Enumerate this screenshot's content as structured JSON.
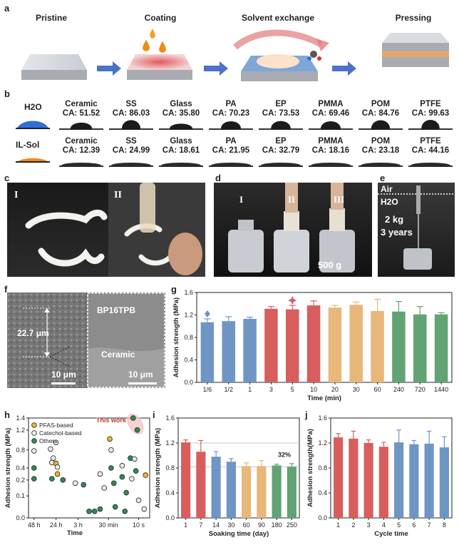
{
  "panel_labels": {
    "a": "a",
    "b": "b",
    "c": "c",
    "d": "d",
    "e": "e",
    "f": "f",
    "g": "g",
    "h": "h",
    "i": "i",
    "j": "j"
  },
  "panel_a": {
    "steps": [
      "Pristine",
      "Coating",
      "Solvent exchange",
      "Pressing"
    ]
  },
  "panel_b": {
    "row1_label": "H2O",
    "row2_label": "IL-Sol",
    "h2o": [
      {
        "m": "Ceramic",
        "ca": "CA: 51.52"
      },
      {
        "m": "SS",
        "ca": "CA: 86.03"
      },
      {
        "m": "Glass",
        "ca": "CA: 35.80"
      },
      {
        "m": "PA",
        "ca": "CA: 70.23"
      },
      {
        "m": "EP",
        "ca": "CA: 73.53"
      },
      {
        "m": "PMMA",
        "ca": "CA: 69.46"
      },
      {
        "m": "POM",
        "ca": "CA: 84.76"
      },
      {
        "m": "PTFE",
        "ca": "CA: 99.63"
      }
    ],
    "ilsol": [
      {
        "m": "Ceramic",
        "ca": "CA: 12.39"
      },
      {
        "m": "SS",
        "ca": "CA: 24.99"
      },
      {
        "m": "Glass",
        "ca": "CA: 18.61"
      },
      {
        "m": "PA",
        "ca": "CA: 21.95"
      },
      {
        "m": "EP",
        "ca": "CA: 32.79"
      },
      {
        "m": "PMMA",
        "ca": "CA: 18.16"
      },
      {
        "m": "POM",
        "ca": "CA: 23.18"
      },
      {
        "m": "PTFE",
        "ca": "CA: 44.16"
      }
    ]
  },
  "panel_c": {
    "left": "I",
    "right": "II"
  },
  "panel_d": {
    "labels": [
      "I",
      "II",
      "III"
    ],
    "weight": "500 g"
  },
  "panel_e": {
    "air": "Air",
    "water": "H2O",
    "load": "2 kg",
    "duration": "3 years"
  },
  "panel_f": {
    "thickness": "22.7 μm",
    "scale_left": "10 μm",
    "scale_right": "10 μm",
    "layer": "BP16TPB",
    "substrate": "Ceramic"
  },
  "chart_data": [
    {
      "panel": "g",
      "type": "bar",
      "ylabel": "Adhesion strength (MPa)",
      "xlabel": "Time (min)",
      "ylim": [
        0,
        1.6
      ],
      "yticks": [
        "0.0",
        "0.4",
        "0.8",
        "1.2",
        "1.6"
      ],
      "categories": [
        "1/6",
        "1/2",
        "1",
        "3",
        "5",
        "10",
        "20",
        "30",
        "60",
        "240",
        "720",
        "1440"
      ],
      "values": [
        1.07,
        1.09,
        1.13,
        1.31,
        1.3,
        1.37,
        1.33,
        1.38,
        1.27,
        1.26,
        1.21,
        1.21
      ],
      "errors": [
        0.06,
        0.08,
        0.03,
        0.04,
        0.07,
        0.08,
        0.04,
        0.05,
        0.21,
        0.18,
        0.14,
        0.03
      ],
      "colors": [
        "#6f95c4",
        "#6f95c4",
        "#6f95c4",
        "#d85e5e",
        "#d85e5e",
        "#d85e5e",
        "#e8b77a",
        "#e8b77a",
        "#e8b77a",
        "#62a373",
        "#62a373",
        "#62a373"
      ]
    },
    {
      "panel": "h",
      "type": "scatter",
      "ylabel": "Adhesion strength (MPa)",
      "xlabel": "Time",
      "yticks": [
        "0.0",
        "0.1",
        "0.2",
        "0.4",
        "0.8",
        "1.2",
        "1.4"
      ],
      "xticks": [
        "48 h",
        "24 h",
        "3 h",
        "30 min",
        "10 s"
      ],
      "legend": [
        "PFAS-based",
        "Catechol-based",
        "Others"
      ],
      "annotation": "This work",
      "points": [
        {
          "t": "catechol",
          "x": 0.2,
          "y": 0.78
        },
        {
          "t": "others",
          "x": 0.2,
          "y": 0.4
        },
        {
          "t": "others",
          "x": 0.2,
          "y": 0.22
        },
        {
          "t": "catechol",
          "x": 1.0,
          "y": 0.95
        },
        {
          "t": "catechol",
          "x": 0.8,
          "y": 0.82
        },
        {
          "t": "catechol",
          "x": 0.9,
          "y": 0.62
        },
        {
          "t": "catechol",
          "x": 0.85,
          "y": 0.52
        },
        {
          "t": "pfas",
          "x": 1.0,
          "y": 0.5
        },
        {
          "t": "catechol",
          "x": 1.05,
          "y": 0.42
        },
        {
          "t": "pfas",
          "x": 1.05,
          "y": 0.3
        },
        {
          "t": "others",
          "x": 0.85,
          "y": 0.22
        },
        {
          "t": "others",
          "x": 1.25,
          "y": 0.2
        },
        {
          "t": "catechol",
          "x": 1.7,
          "y": 0.18
        },
        {
          "t": "others",
          "x": 2.0,
          "y": 0.17
        },
        {
          "t": "others",
          "x": 2.2,
          "y": 0.03
        },
        {
          "t": "others",
          "x": 2.4,
          "y": 0.03
        },
        {
          "t": "others",
          "x": 2.6,
          "y": 0.04
        },
        {
          "t": "catechol",
          "x": 2.6,
          "y": 0.3
        },
        {
          "t": "catechol",
          "x": 2.75,
          "y": 0.15
        },
        {
          "t": "pfas",
          "x": 2.95,
          "y": 1.02
        },
        {
          "t": "catechol",
          "x": 3.0,
          "y": 0.8
        },
        {
          "t": "others",
          "x": 3.0,
          "y": 0.4
        },
        {
          "t": "others",
          "x": 3.1,
          "y": 0.18
        },
        {
          "t": "others",
          "x": 3.15,
          "y": 0.05
        },
        {
          "t": "others",
          "x": 3.4,
          "y": 0.25
        },
        {
          "t": "catechol",
          "x": 3.4,
          "y": 0.45
        },
        {
          "t": "others",
          "x": 3.55,
          "y": 0.12
        },
        {
          "t": "others",
          "x": 3.5,
          "y": 0.03
        },
        {
          "t": "others",
          "x": 3.7,
          "y": 0.62
        },
        {
          "t": "catechol",
          "x": 3.75,
          "y": 0.22
        },
        {
          "t": "others",
          "x": 3.8,
          "y": 1.4
        },
        {
          "t": "others",
          "x": 3.95,
          "y": 1.2
        },
        {
          "t": "catechol",
          "x": 3.85,
          "y": 0.6
        },
        {
          "t": "others",
          "x": 3.9,
          "y": 0.35
        },
        {
          "t": "catechol",
          "x": 4.0,
          "y": 0.08
        },
        {
          "t": "pfas",
          "x": 4.25,
          "y": 0.28
        },
        {
          "t": "catechol",
          "x": 4.2,
          "y": 0.04
        }
      ]
    },
    {
      "panel": "i",
      "type": "bar",
      "ylabel": "Adhesion strength (MPa)",
      "xlabel": "Soaking time (day)",
      "ylim": [
        0,
        1.6
      ],
      "yticks": [
        "0.0",
        "0.4",
        "0.8",
        "1.2",
        "1.6"
      ],
      "categories": [
        "1",
        "7",
        "14",
        "30",
        "60",
        "90",
        "180",
        "250"
      ],
      "values": [
        1.21,
        1.06,
        0.98,
        0.9,
        0.83,
        0.83,
        0.84,
        0.82
      ],
      "errors": [
        0.04,
        0.18,
        0.08,
        0.05,
        0.05,
        0.09,
        0.02,
        0.05
      ],
      "colors": [
        "#d85e5e",
        "#d85e5e",
        "#6f95c4",
        "#6f95c4",
        "#e8b77a",
        "#e8b77a",
        "#62a373",
        "#62a373"
      ],
      "annotation": "32%",
      "ref_lines": [
        1.2,
        0.82
      ]
    },
    {
      "panel": "j",
      "type": "bar",
      "ylabel": "Adhesion strength(MPa)",
      "xlabel": "Cycle time",
      "ylim": [
        0,
        1.6
      ],
      "yticks": [
        "0.0",
        "0.4",
        "0.8",
        "1.2",
        "1.6"
      ],
      "categories": [
        "1",
        "2",
        "3",
        "4",
        "5",
        "6",
        "7",
        "8"
      ],
      "values": [
        1.29,
        1.27,
        1.2,
        1.14,
        1.21,
        1.18,
        1.19,
        1.13
      ],
      "errors": [
        0.06,
        0.12,
        0.05,
        0.07,
        0.2,
        0.06,
        0.2,
        0.17
      ],
      "colors": [
        "#d85e5e",
        "#d85e5e",
        "#d85e5e",
        "#d85e5e",
        "#6f95c4",
        "#6f95c4",
        "#6f95c4",
        "#6f95c4"
      ]
    }
  ]
}
